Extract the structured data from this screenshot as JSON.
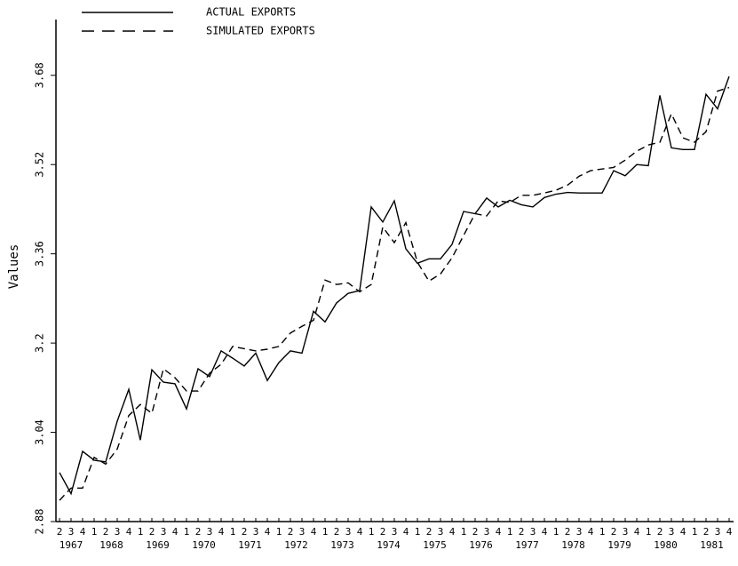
{
  "chart_data": {
    "type": "line",
    "y_label": "Values",
    "categories": [
      "2",
      "3",
      "4",
      "1",
      "2",
      "3",
      "4",
      "1",
      "2",
      "3",
      "4",
      "1",
      "2",
      "3",
      "4",
      "1",
      "2",
      "3",
      "4",
      "1",
      "2",
      "3",
      "4",
      "1",
      "2",
      "3",
      "4",
      "1",
      "2",
      "3",
      "4",
      "1",
      "2",
      "3",
      "4",
      "1",
      "2",
      "3",
      "4",
      "1",
      "2",
      "3",
      "4",
      "1",
      "2",
      "3",
      "4",
      "1",
      "2",
      "3",
      "4",
      "1",
      "2",
      "3",
      "4",
      "1",
      "2",
      "3",
      "4"
    ],
    "years": [
      "1967",
      "1968",
      "1969",
      "1970",
      "1971",
      "1972",
      "1973",
      "1974",
      "1975",
      "1976",
      "1977",
      "1978",
      "1979",
      "1980",
      "1981"
    ],
    "series": [
      {
        "name": "ACTUAL EXPORTS",
        "color": "#000000",
        "dash": false,
        "values": [
          2.968,
          2.93,
          3.006,
          2.99,
          2.987,
          3.06,
          3.117,
          3.026,
          3.152,
          3.13,
          3.127,
          3.082,
          3.154,
          3.14,
          3.186,
          3.173,
          3.159,
          3.182,
          3.133,
          3.165,
          3.186,
          3.182,
          3.257,
          3.238,
          3.272,
          3.289,
          3.294,
          3.444,
          3.417,
          3.455,
          3.369,
          3.343,
          3.351,
          3.351,
          3.377,
          3.436,
          3.432,
          3.46,
          3.444,
          3.456,
          3.448,
          3.444,
          3.461,
          3.467,
          3.47,
          3.469,
          3.469,
          3.469,
          3.509,
          3.5,
          3.52,
          3.518,
          3.644,
          3.55,
          3.547,
          3.547,
          3.646,
          3.62,
          3.678
        ]
      },
      {
        "name": "SIMULATED EXPORTS",
        "color": "#000000",
        "dash": true,
        "values": [
          2.918,
          2.94,
          2.94,
          2.995,
          2.983,
          3.01,
          3.07,
          3.09,
          3.074,
          3.154,
          3.138,
          3.114,
          3.114,
          3.146,
          3.162,
          3.194,
          3.19,
          3.186,
          3.189,
          3.194,
          3.218,
          3.23,
          3.241,
          3.313,
          3.305,
          3.308,
          3.292,
          3.305,
          3.408,
          3.38,
          3.416,
          3.345,
          3.311,
          3.324,
          3.353,
          3.393,
          3.432,
          3.428,
          3.455,
          3.452,
          3.465,
          3.465,
          3.469,
          3.474,
          3.483,
          3.499,
          3.509,
          3.512,
          3.515,
          3.528,
          3.544,
          3.555,
          3.56,
          3.611,
          3.568,
          3.56,
          3.579,
          3.652,
          3.658
        ]
      }
    ],
    "ylim": [
      2.88,
      3.78
    ],
    "yticks": [
      2.88,
      3.04,
      3.2,
      3.36,
      3.52,
      3.68
    ]
  }
}
